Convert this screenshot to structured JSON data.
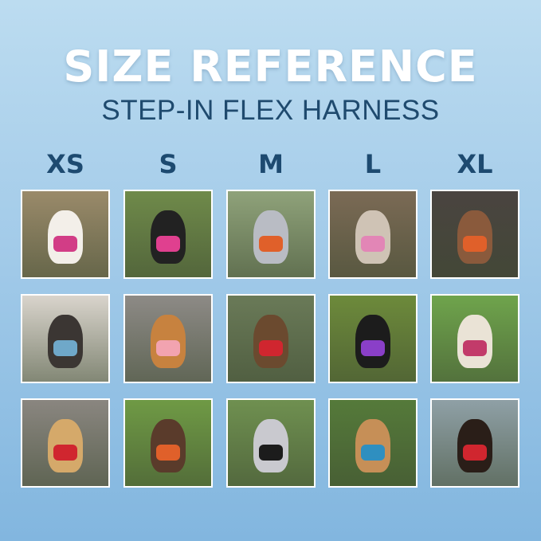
{
  "header": {
    "title": "SIZE REFERENCE",
    "subtitle": "STEP-IN FLEX HARNESS"
  },
  "sizes": [
    "XS",
    "S",
    "M",
    "L",
    "XL"
  ],
  "photos": [
    {
      "size": "XS",
      "bg": "#9a8a6a",
      "dog": "#f3efe9",
      "harness": "#d23d86"
    },
    {
      "size": "S",
      "bg": "#6f8a4a",
      "dog": "#222222",
      "harness": "#e0408f"
    },
    {
      "size": "M",
      "bg": "#8fa27a",
      "dog": "#b9bcc4",
      "harness": "#e0602a"
    },
    {
      "size": "L",
      "bg": "#7b6a55",
      "dog": "#cfc3b5",
      "harness": "#e286b6"
    },
    {
      "size": "XL",
      "bg": "#4a4440",
      "dog": "#8a5a3c",
      "harness": "#e0602a"
    },
    {
      "size": "XS",
      "bg": "#d9d4cc",
      "dog": "#3b3633",
      "harness": "#6fa8c9"
    },
    {
      "size": "S",
      "bg": "#8d8a86",
      "dog": "#c7823f",
      "harness": "#f2a3b0"
    },
    {
      "size": "M",
      "bg": "#6a7a58",
      "dog": "#6b4a2f",
      "harness": "#d0262f"
    },
    {
      "size": "L",
      "bg": "#6d8a3b",
      "dog": "#1c1c1c",
      "harness": "#8a3fc8"
    },
    {
      "size": "XL",
      "bg": "#6fa44c",
      "dog": "#eae3d6",
      "harness": "#c23b6a"
    },
    {
      "size": "XS",
      "bg": "#8a8680",
      "dog": "#d5a96a",
      "harness": "#d0262f"
    },
    {
      "size": "S",
      "bg": "#6f9a45",
      "dog": "#5a3b2b",
      "harness": "#e0602a"
    },
    {
      "size": "M",
      "bg": "#6f9050",
      "dog": "#c9c9cf",
      "harness": "#1c1c1c"
    },
    {
      "size": "L",
      "bg": "#557a3a",
      "dog": "#c68f57",
      "harness": "#2f8fc0"
    },
    {
      "size": "XL",
      "bg": "#8fa0a6",
      "dog": "#2a1e18",
      "harness": "#d0262f"
    }
  ]
}
